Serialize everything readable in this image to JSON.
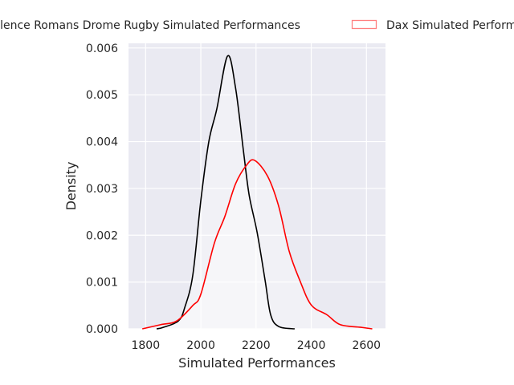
{
  "chart_data": {
    "type": "area",
    "title": "",
    "xlabel": "Simulated Performances",
    "ylabel": "Density",
    "xlim": [
      1738,
      2669
    ],
    "ylim": [
      0,
      0.0061
    ],
    "xticks": [
      1800,
      2000,
      2200,
      2400,
      2600
    ],
    "yticks": [
      0.0,
      0.001,
      0.002,
      0.003,
      0.004,
      0.005,
      0.006
    ],
    "ytick_labels": [
      "0.000",
      "0.001",
      "0.002",
      "0.003",
      "0.004",
      "0.005",
      "0.006"
    ],
    "grid": true,
    "background": "#eaeaf2",
    "legend_placement": "top, outside axes",
    "series": [
      {
        "name": "Valence Romans Drome Rugby Simulated Performances",
        "color": "#000000",
        "x": [
          1840,
          1863,
          1919,
          1942,
          1971,
          2000,
          2029,
          2058,
          2097,
          2126,
          2155,
          2175,
          2204,
          2233,
          2253,
          2282,
          2340
        ],
        "y": [
          0,
          3e-05,
          0.00017,
          0.00046,
          0.00115,
          0.00274,
          0.004,
          0.0047,
          0.00583,
          0.00514,
          0.00377,
          0.00286,
          0.00206,
          0.00103,
          0.0003,
          5e-05,
          0
        ]
      },
      {
        "name": "Dax Simulated Performances",
        "color": "#ff0000",
        "x": [
          1788,
          1855,
          1913,
          1971,
          2000,
          2049,
          2087,
          2126,
          2166,
          2195,
          2242,
          2282,
          2320,
          2359,
          2400,
          2457,
          2505,
          2584,
          2621
        ],
        "y": [
          0,
          9e-05,
          0.00017,
          0.0005,
          0.00074,
          0.00183,
          0.0024,
          0.0031,
          0.0035,
          0.0036,
          0.00326,
          0.00262,
          0.00166,
          0.00103,
          0.00051,
          0.0003,
          9e-05,
          3e-05,
          0
        ]
      }
    ]
  }
}
